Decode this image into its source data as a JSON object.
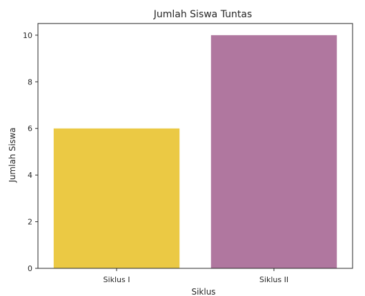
{
  "chart_data": {
    "type": "bar",
    "title": "Jumlah Siswa Tuntas",
    "xlabel": "Siklus",
    "ylabel": "Jumlah Siswa",
    "categories": [
      "Siklus I",
      "Siklus II"
    ],
    "values": [
      6,
      10
    ],
    "bar_colors": [
      "#ebc944",
      "#b0779f"
    ],
    "ylim": [
      0,
      10.5
    ],
    "yticks": [
      0,
      2,
      4,
      6,
      8,
      10
    ],
    "grid": false,
    "legend": "none"
  }
}
